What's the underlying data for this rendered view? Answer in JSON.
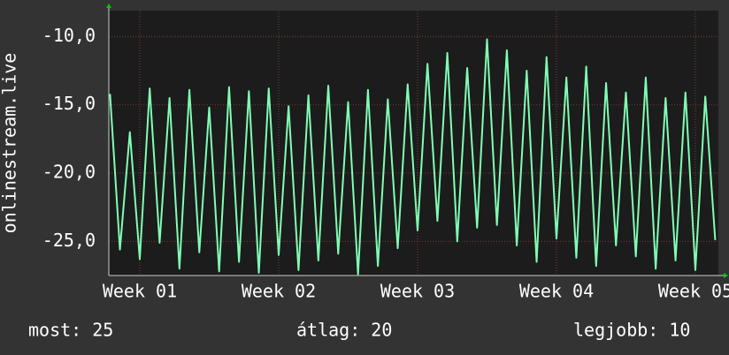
{
  "chart_data": {
    "type": "line",
    "y_label": "onlinestream.live",
    "x": [
      -1.5,
      -1,
      -0.5,
      0,
      0.5,
      1,
      1.5,
      2,
      2.5,
      3,
      3.5,
      4,
      4.5,
      5,
      5.5,
      6,
      6.5,
      7,
      7.5,
      8,
      8.5,
      9,
      9.5,
      10,
      10.5,
      11,
      11.5,
      12,
      12.5,
      13,
      13.5,
      14,
      14.5,
      15,
      15.5,
      16,
      16.5,
      17,
      17.5,
      18,
      18.5,
      19,
      19.5,
      20,
      20.5,
      21,
      21.5,
      22,
      22.5,
      23,
      23.5,
      24,
      24.5,
      25,
      25.5,
      26,
      26.5,
      27,
      27.5,
      28,
      28.5,
      29
    ],
    "series": [
      {
        "color": "#80ffb4",
        "values": [
          -14.2,
          -25.6,
          -17.0,
          -26.3,
          -13.8,
          -25.1,
          -14.5,
          -27.0,
          -13.9,
          -25.8,
          -15.2,
          -27.2,
          -13.7,
          -26.5,
          -14.0,
          -27.3,
          -13.8,
          -26.0,
          -15.1,
          -27.1,
          -14.3,
          -26.4,
          -13.6,
          -25.9,
          -14.8,
          -27.4,
          -13.9,
          -26.8,
          -14.6,
          -25.5,
          -13.5,
          -24.2,
          -12.0,
          -23.5,
          -11.2,
          -25.0,
          -12.3,
          -24.0,
          -10.2,
          -23.8,
          -11.0,
          -25.3,
          -12.5,
          -26.5,
          -11.5,
          -24.8,
          -13.0,
          -26.2,
          -12.2,
          -26.8,
          -13.4,
          -25.3,
          -14.1,
          -26.1,
          -13.0,
          -27.0,
          -14.5,
          -26.4,
          -14.1,
          -27.1,
          -14.4,
          -24.9
        ]
      }
    ],
    "xlim": [
      -1.56,
      29.16
    ],
    "xticks": [
      {
        "value": 0,
        "label": "Week 01"
      },
      {
        "value": 7,
        "label": "Week 02"
      },
      {
        "value": 14,
        "label": "Week 03"
      },
      {
        "value": 21,
        "label": "Week 04"
      },
      {
        "value": 28,
        "label": "Week 05"
      }
    ],
    "ylim": [
      -27.5,
      -8.1
    ],
    "yticks": [
      {
        "value": -10,
        "label": "-10,0"
      },
      {
        "value": -15,
        "label": "-15,0"
      },
      {
        "value": -20,
        "label": "-20,0"
      },
      {
        "value": -25,
        "label": "-25,0"
      }
    ],
    "grid": true,
    "footer": [
      "most: 25",
      "átlag: 20",
      "legjobb: 10"
    ]
  }
}
